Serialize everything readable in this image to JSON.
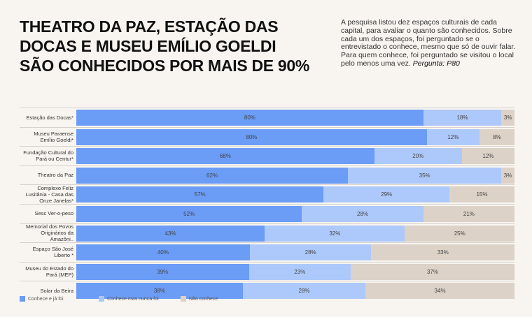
{
  "title": "THEATRO DA PAZ, ESTAÇÃO DAS DOCAS E MUSEU EMÍLIO GOELDI SÃO CONHECIDOS POR MAIS DE 90%",
  "description": "A pesquisa listou dez espaços culturais de cada capital, para avaliar o quanto são conhecidos. Sobre cada um dos espaços, foi perguntado se o entrevistado o conhece, mesmo que só de ouvir falar. Para quem conhece, foi perguntado se visitou o local pelo menos uma vez.",
  "question": "Pergunta: P80",
  "chart_data": {
    "type": "bar",
    "orientation": "horizontal-stacked-100",
    "legend_position": "bottom-left",
    "categories": [
      "Estação das Docas*",
      "Museu Paraense Emílio Goeldi*",
      "Fundação Cultural do Pará ou Centur*",
      "Theatro da Paz",
      "Complexo Feliz Lusitânia - Casa das Onze Janelas*",
      "Sesc Ver-o-peso",
      "Memorial dos Povos Originários da Amazôni..",
      "Espaço São José Liberto *",
      "Museu do Estado do Pará (MEP)",
      "Solar da Beira"
    ],
    "series": [
      {
        "name": "Conhece e já foi",
        "color": "#6b9cf6",
        "values": [
          80,
          80,
          68,
          62,
          57,
          52,
          43,
          40,
          39,
          38
        ]
      },
      {
        "name": "Conhece mas nunca foi",
        "color": "#adc9fb",
        "values": [
          18,
          12,
          20,
          35,
          29,
          28,
          32,
          28,
          23,
          28
        ]
      },
      {
        "name": "Não conhece",
        "color": "#ddd2c7",
        "values": [
          3,
          8,
          12,
          3,
          15,
          21,
          25,
          33,
          37,
          34
        ]
      }
    ]
  }
}
